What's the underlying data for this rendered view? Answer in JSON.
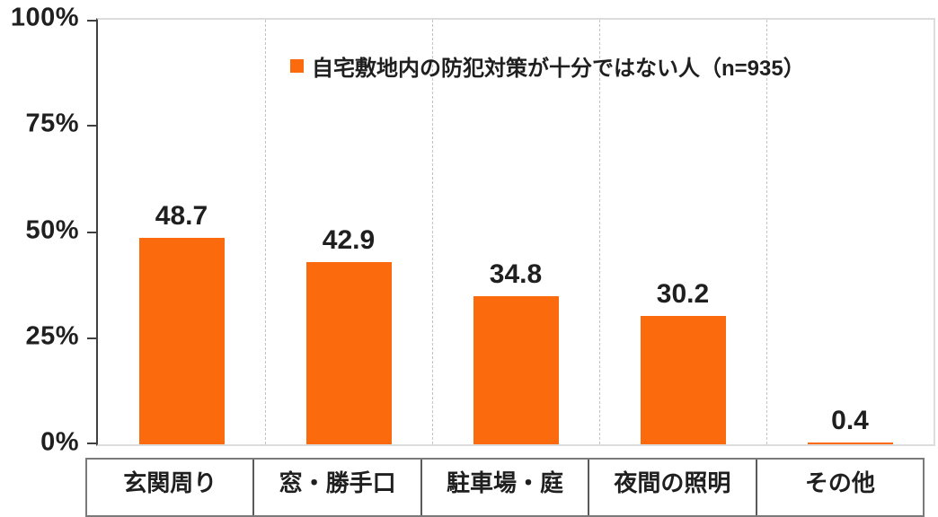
{
  "chart_data": {
    "type": "bar",
    "title": "",
    "legend": {
      "label": "自宅敷地内の防犯対策が十分ではない人（n=935）",
      "position": "top-center",
      "marker": "square"
    },
    "categories": [
      "玄関周り",
      "窓・勝手口",
      "駐車場・庭",
      "夜間の照明",
      "その他"
    ],
    "values": [
      48.7,
      42.9,
      34.8,
      30.2,
      0.4
    ],
    "value_labels": [
      "48.7",
      "42.9",
      "34.8",
      "30.2",
      "0.4"
    ],
    "xlabel": "",
    "ylabel": "",
    "ylim": [
      0,
      100
    ],
    "y_tick_labels_top_to_bottom": [
      "100%",
      "75%",
      "50%",
      "25%",
      "0%"
    ],
    "grid": "vertical-dashed-only",
    "bar_width_fraction": 0.51
  },
  "colors": {
    "bar": "#fb6a0c",
    "text": "#1f1f1f",
    "axis_dark": "#404040",
    "plot_border_light": "#dcdcdc",
    "gridline": "#c3c3c3",
    "table_outer_border": "#7a7a7a",
    "table_divider": "#595959",
    "background": "#ffffff"
  }
}
